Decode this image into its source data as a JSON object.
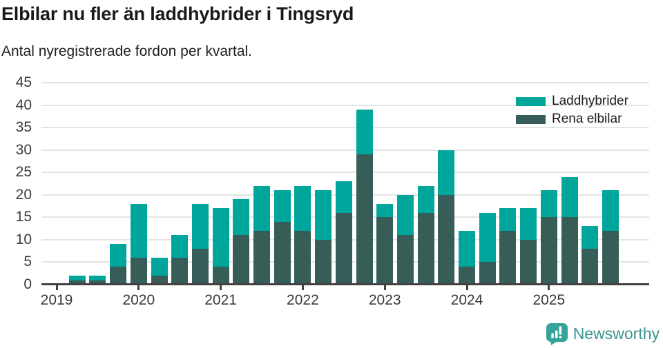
{
  "header": {
    "title": "Elbilar nu fler än laddhybrider i Tingsryd",
    "subtitle": "Antal nyregistrerade fordon per kvartal."
  },
  "legend": {
    "items": [
      {
        "label": "Laddhybrider",
        "color": "#00A69C"
      },
      {
        "label": "Rena elbilar",
        "color": "#365D58"
      }
    ]
  },
  "footer": {
    "brand": "Newsworthy",
    "brand_color": "#3B948E",
    "icon": "newsworthy-speech-bubble-bar-chart-icon",
    "icon_color": "#36A29A"
  },
  "chart_data": {
    "type": "bar",
    "stacked": true,
    "title": "Elbilar nu fler än laddhybrider i Tingsryd",
    "subtitle": "Antal nyregistrerade fordon per kvartal.",
    "categories": [
      "2019Q1",
      "2019Q2",
      "2019Q3",
      "2019Q4",
      "2020Q1",
      "2020Q2",
      "2020Q3",
      "2020Q4",
      "2021Q1",
      "2021Q2",
      "2021Q3",
      "2021Q4",
      "2022Q1",
      "2022Q2",
      "2022Q3",
      "2022Q4",
      "2023Q1",
      "2023Q2",
      "2023Q3",
      "2023Q4",
      "2024Q1",
      "2024Q2",
      "2024Q3",
      "2024Q4",
      "2025Q1",
      "2025Q2",
      "2025Q3",
      "2025Q4"
    ],
    "series": [
      {
        "name": "Rena elbilar",
        "color": "#365D58",
        "values": [
          0,
          1,
          1,
          4,
          6,
          2,
          6,
          8,
          4,
          11,
          12,
          14,
          12,
          10,
          16,
          29,
          15,
          11,
          16,
          20,
          4,
          5,
          12,
          10,
          15,
          15,
          8,
          12
        ]
      },
      {
        "name": "Laddhybrider",
        "color": "#00A69C",
        "values": [
          0,
          1,
          1,
          5,
          12,
          4,
          5,
          10,
          13,
          8,
          10,
          7,
          10,
          11,
          7,
          10,
          3,
          9,
          6,
          10,
          8,
          11,
          5,
          7,
          6,
          9,
          5,
          9
        ]
      }
    ],
    "totals": [
      0,
      2,
      2,
      9,
      18,
      6,
      11,
      18,
      17,
      19,
      22,
      21,
      22,
      21,
      23,
      39,
      18,
      20,
      22,
      30,
      12,
      16,
      17,
      17,
      21,
      24,
      13,
      21
    ],
    "x_tick_labels": [
      "2019",
      "2020",
      "2021",
      "2022",
      "2023",
      "2024",
      "2025"
    ],
    "y_ticks": [
      0,
      5,
      10,
      15,
      20,
      25,
      30,
      35,
      40,
      45
    ],
    "ylim": [
      0,
      45
    ],
    "grid": true,
    "legend_position": "top-right",
    "bar_unit": "fordon per kvartal"
  }
}
